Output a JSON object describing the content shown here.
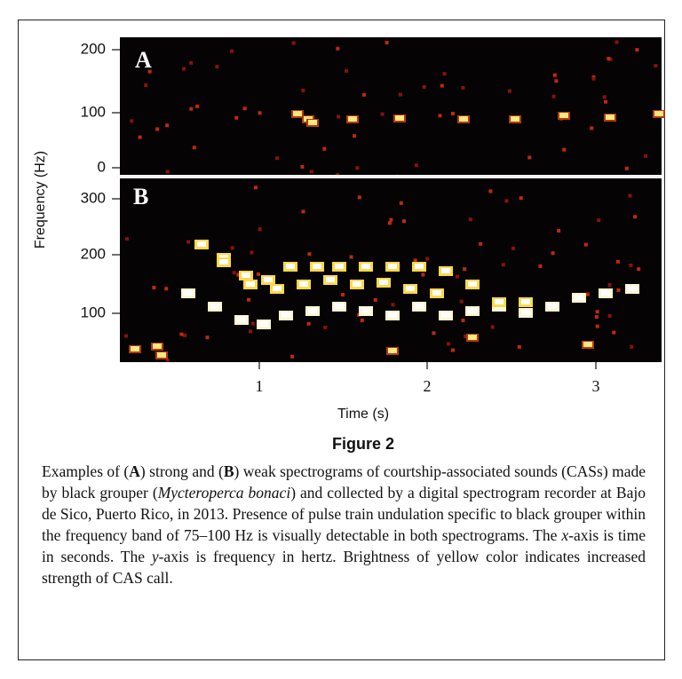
{
  "figure": {
    "panels": [
      {
        "label": "A",
        "yticks": [
          200,
          100,
          0
        ]
      },
      {
        "label": "B",
        "yticks": [
          300,
          200,
          100
        ]
      }
    ],
    "xticks": [
      1,
      2,
      3
    ],
    "y_label": "Frequency (Hz)",
    "x_label": "Time (s)",
    "title": "Figure 2",
    "caption": [
      {
        "text": "Examples of ("
      },
      {
        "text": "A",
        "style": "bold"
      },
      {
        "text": ") strong and ("
      },
      {
        "text": "B",
        "style": "bold"
      },
      {
        "text": ") weak spectrograms of courtship-associated sounds (CASs) made by black grouper ("
      },
      {
        "text": "Mycteroperca bonaci",
        "style": "italic"
      },
      {
        "text": ") and collected by a digital spectrogram recorder at Bajo de Sico, Puerto Rico, in 2013. Presence of pulse train undulation specific to black grouper within the frequency band of 75–100 Hz is visually detectable in both spectrograms. The "
      },
      {
        "text": "x",
        "style": "italic"
      },
      {
        "text": "-axis is time in seconds. The "
      },
      {
        "text": "y",
        "style": "italic"
      },
      {
        "text": "-axis is frequency in hertz. Brightness of yellow color indicates increased strength of CAS call."
      }
    ]
  }
}
